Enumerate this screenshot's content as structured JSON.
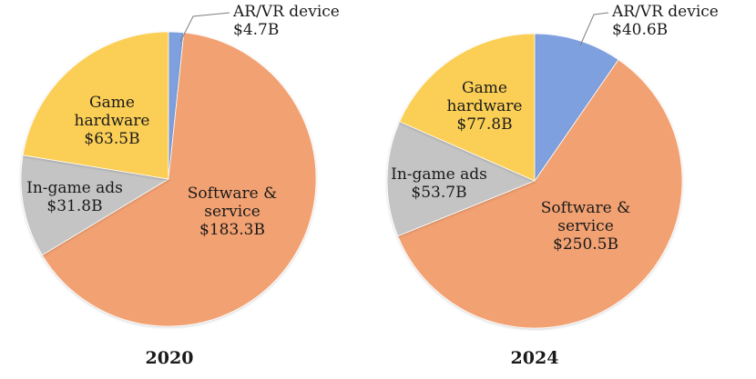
{
  "colors": {
    "AR/VR device": "#7fa0de",
    "Software & service": "#f2a172",
    "In-game ads": "#c4c4c4",
    "Game hardware": "#fbcf56"
  },
  "chart_data": [
    {
      "type": "pie",
      "title": "2020",
      "slices": [
        {
          "label": "AR/VR device",
          "label_lines": [
            "AR/VR device"
          ],
          "value": 4.7,
          "value_label": "$4.7B"
        },
        {
          "label": "Software & service",
          "label_lines": [
            "Software &",
            "service"
          ],
          "value": 183.3,
          "value_label": "$183.3B"
        },
        {
          "label": "In-game ads",
          "label_lines": [
            "In-game ads"
          ],
          "value": 31.8,
          "value_label": "$31.8B"
        },
        {
          "label": "Game hardware",
          "label_lines": [
            "Game",
            "hardware"
          ],
          "value": 63.5,
          "value_label": "$63.5B"
        }
      ]
    },
    {
      "type": "pie",
      "title": "2024",
      "slices": [
        {
          "label": "AR/VR device",
          "label_lines": [
            "AR/VR device"
          ],
          "value": 40.6,
          "value_label": "$40.6B"
        },
        {
          "label": "Software & service",
          "label_lines": [
            "Software &",
            "service"
          ],
          "value": 250.5,
          "value_label": "$250.5B"
        },
        {
          "label": "In-game ads",
          "label_lines": [
            "In-game ads"
          ],
          "value": 53.7,
          "value_label": "$53.7B"
        },
        {
          "label": "Game hardware",
          "label_lines": [
            "Game",
            "hardware"
          ],
          "value": 77.8,
          "value_label": "$77.8B"
        }
      ]
    }
  ]
}
